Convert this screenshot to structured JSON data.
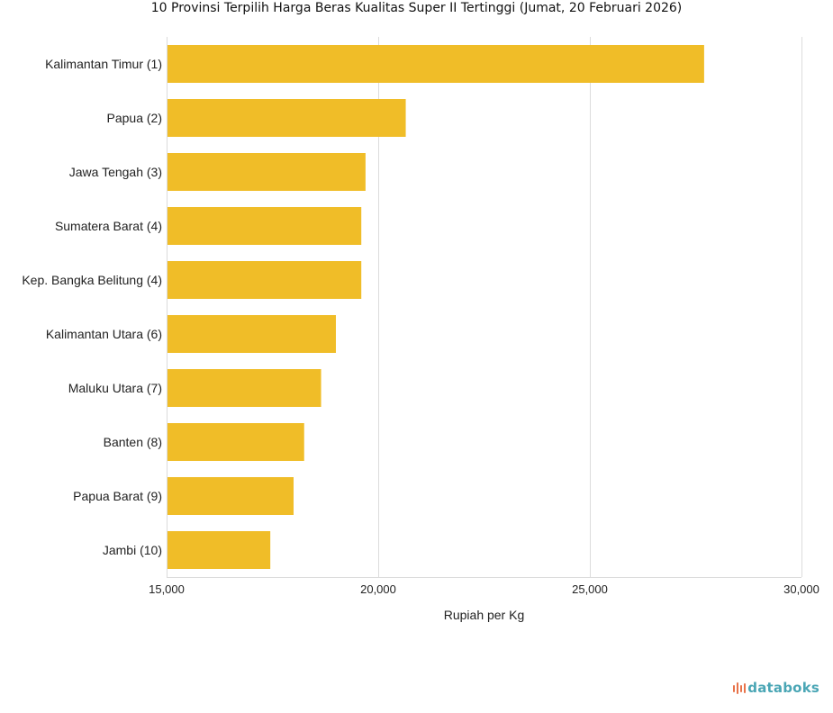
{
  "title": "10 Provinsi Terpilih Harga Beras Kualitas Super II Tertinggi (Jumat, 20 Februari 2026)",
  "brand": {
    "name": "databoks",
    "text_color": "#4aa6b5",
    "icon_color": "#e8734a",
    "icon": "databoks-logo-icon"
  },
  "colors": {
    "bar": "#f0bd28",
    "grid": "#dcdcdc"
  },
  "chart_data": {
    "type": "bar",
    "orientation": "horizontal",
    "categories": [
      "Kalimantan Timur (1)",
      "Papua (2)",
      "Jawa Tengah (3)",
      "Sumatera Barat (4)",
      "Kep. Bangka Belitung (4)",
      "Kalimantan Utara (6)",
      "Maluku Utara (7)",
      "Banten (8)",
      "Papua Barat (9)",
      "Jambi (10)"
    ],
    "values": [
      27700,
      20650,
      19700,
      19600,
      19600,
      19000,
      18650,
      18250,
      18000,
      17450
    ],
    "title": "10 Provinsi Terpilih Harga Beras Kualitas Super II Tertinggi (Jumat, 20 Februari 2026)",
    "xlabel": "Rupiah per Kg",
    "ylabel": "",
    "xlim": [
      15000,
      30000
    ],
    "x_ticks": [
      15000,
      20000,
      25000,
      30000
    ],
    "x_tick_labels": [
      "15,000",
      "20,000",
      "25,000",
      "30,000"
    ],
    "grid": true,
    "legend": "none"
  }
}
